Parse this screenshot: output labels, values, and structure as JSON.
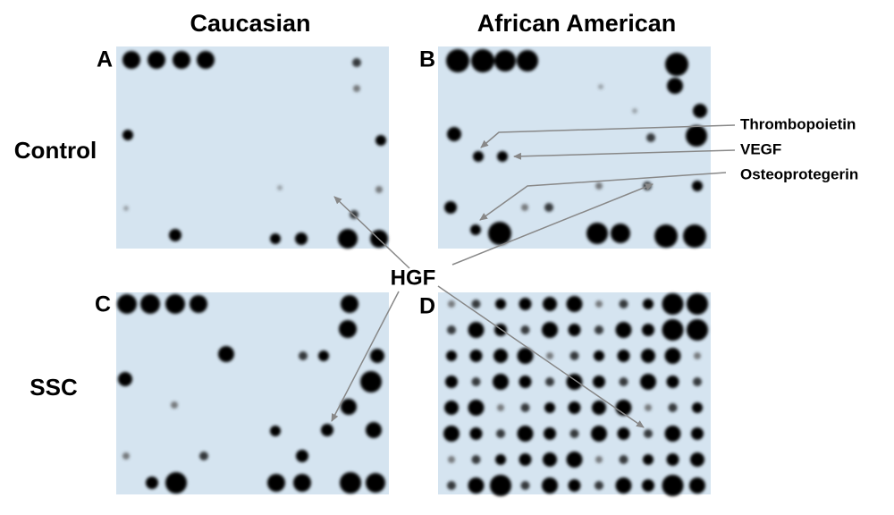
{
  "columns": [
    "Caucasian",
    "African American"
  ],
  "rows": [
    "Control",
    "SSC"
  ],
  "panels": [
    "A",
    "B",
    "C",
    "D"
  ],
  "annotations": [
    "Thrombopoietin",
    "VEGF",
    "Osteoprotegerin",
    "HGF"
  ]
}
